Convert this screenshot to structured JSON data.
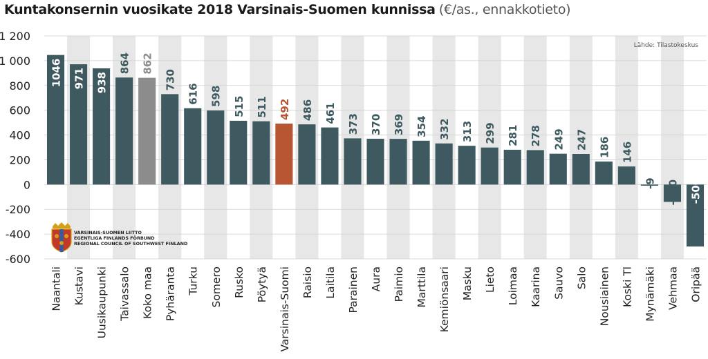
{
  "chart_data": {
    "type": "bar",
    "title": "Kuntakonsernin vuosikate 2018 Varsinais-Suomen kunnissa",
    "subtitle": "(€/as., ennakkotieto)",
    "source": "Lähde: Tilastokeskus",
    "categories": [
      "Naantali",
      "Kustavi",
      "Uusikaupunki",
      "Taivassalo",
      "Koko maa",
      "Pyhäranta",
      "Turku",
      "Somero",
      "Rusko",
      "Pöytyä",
      "Varsinais-Suomi",
      "Raisio",
      "Laitila",
      "Parainen",
      "Aura",
      "Paimio",
      "Marttila",
      "Kemiönsaari",
      "Masku",
      "Lieto",
      "Loimaa",
      "Kaarina",
      "Sauvo",
      "Salo",
      "Nousiainen",
      "Koski Tl",
      "Mynämäki",
      "Vehmaa",
      "Oripää"
    ],
    "values": [
      1046,
      971,
      938,
      864,
      862,
      730,
      616,
      598,
      515,
      511,
      492,
      486,
      461,
      373,
      370,
      369,
      354,
      332,
      313,
      299,
      281,
      278,
      249,
      247,
      186,
      146,
      -9,
      -140,
      -500
    ],
    "value_labels": [
      "1046",
      "971",
      "938",
      "864",
      "862",
      "730",
      "616",
      "598",
      "515",
      "511",
      "492",
      "486",
      "461",
      "373",
      "370",
      "369",
      "354",
      "332",
      "313",
      "299",
      "281",
      "278",
      "249",
      "247",
      "186",
      "146",
      "-9",
      "-140",
      "-500"
    ],
    "ylim": [
      -600,
      1200
    ],
    "yticks": [
      1200,
      1000,
      800,
      600,
      400,
      200,
      0,
      -200,
      -400,
      -600
    ],
    "ytick_labels": [
      "1 200",
      "1 000",
      "800",
      "600",
      "400",
      "200",
      "0",
      "-200",
      "-400",
      "-600"
    ],
    "grid": true,
    "colors": {
      "default": "#3e5a60",
      "national": "#8c8c8c",
      "region": "#b85532",
      "band": "#e7e7e7"
    },
    "highlight": {
      "Koko maa": "national",
      "Varsinais-Suomi": "region"
    }
  },
  "logo": {
    "lines": [
      "VARSINAIS-SUOMEN LIITTO",
      "EGENTLIGA FINLANDS FÖRBUND",
      "REGIONAL COUNCIL OF SOUTHWEST FINLAND"
    ],
    "icon": "coat-of-arms-icon"
  }
}
